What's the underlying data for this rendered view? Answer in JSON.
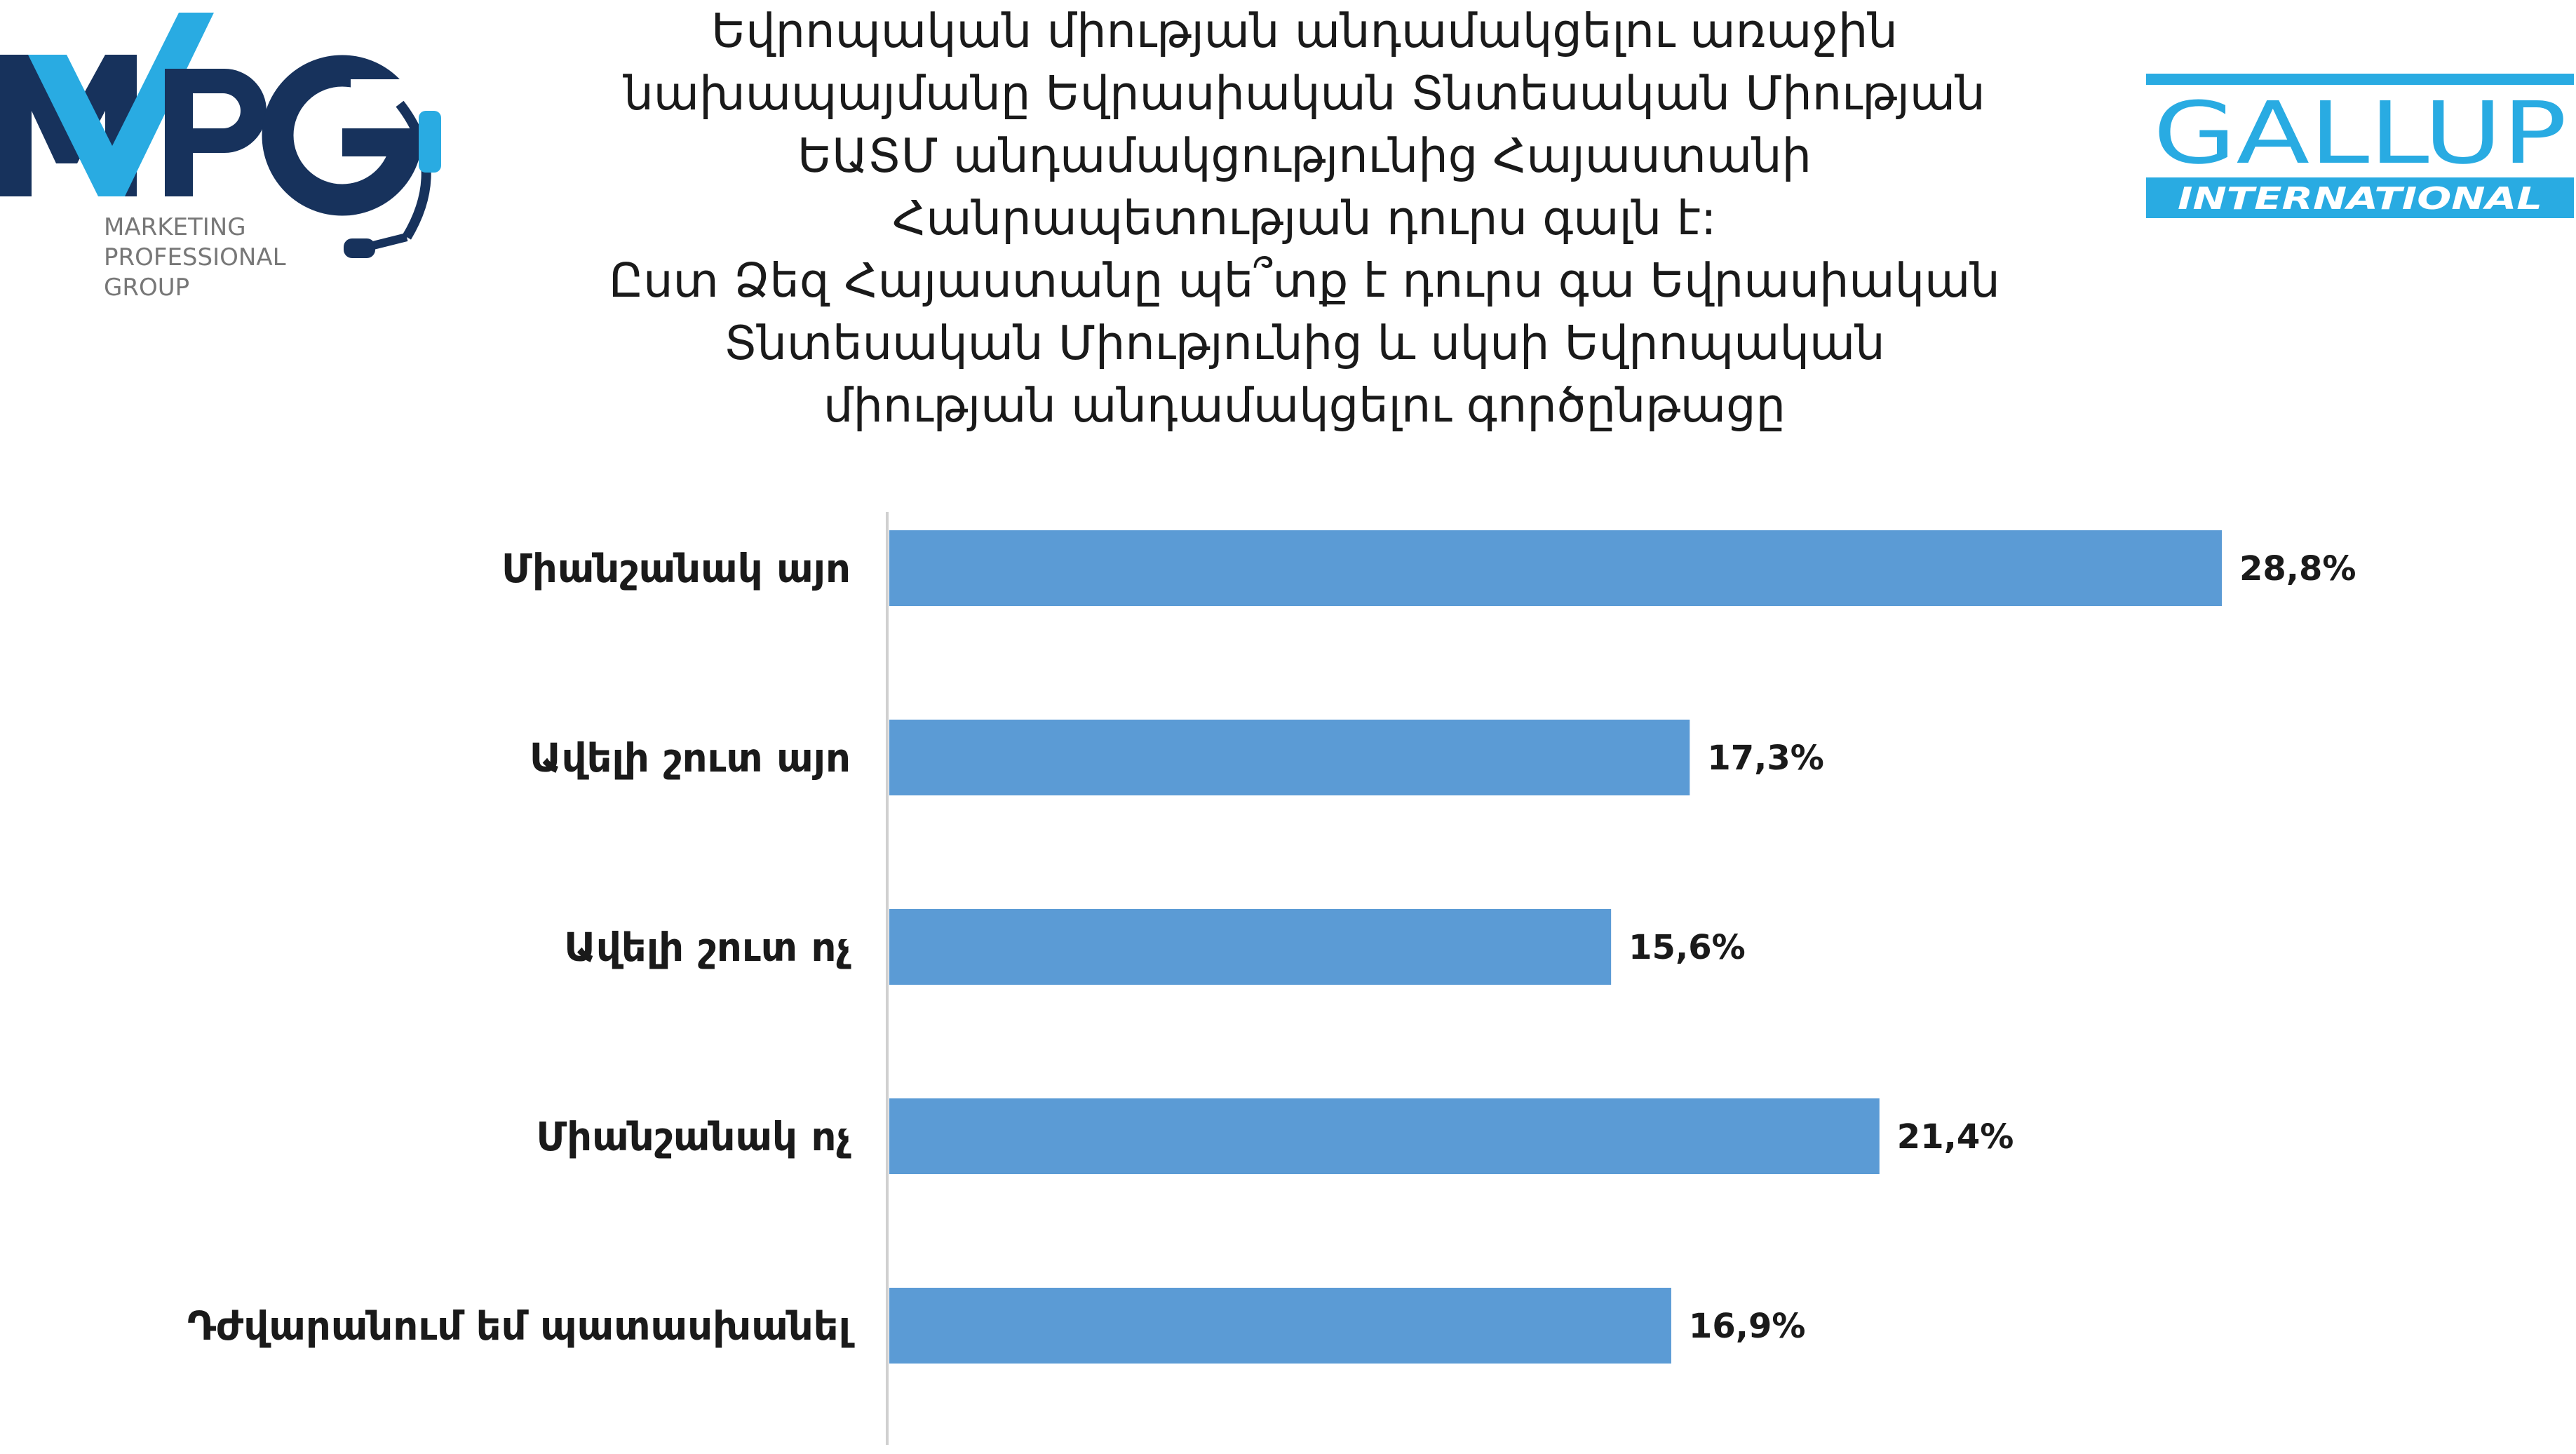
{
  "chart_data": {
    "type": "bar",
    "orientation": "horizontal",
    "title_lines": [
      "Եվրոպական միության անդամակցելու առաջին",
      "նախապայմանը Եվրասիական Տնտեսական Միության",
      "ԵԱՏՄ անդամակցությունից Հայաստանի",
      "Հանրապետության դուրս գալն է:",
      "Ըստ Ձեզ Հայաստանը պե՞տք է դուրս գա Եվրասիական",
      "Տնտեսական Միությունից և սկսի Եվրոպական",
      "միության անդամակցելու գործընթացը"
    ],
    "categories": [
      "Միանշանակ այո",
      "Ավելի շուտ այո",
      "Ավելի շուտ ոչ",
      "Միանշանակ ոչ",
      "Դժվարանում եմ պատասխանել"
    ],
    "values": [
      28.8,
      17.3,
      15.6,
      21.4,
      16.9
    ],
    "value_labels": [
      "28,8%",
      "17,3%",
      "15,6%",
      "21,4%",
      "16,9%"
    ],
    "unit": "%",
    "xlim": [
      0,
      32
    ],
    "grid": false,
    "legend": "none",
    "bar_color": "#5b9bd5"
  },
  "logos": {
    "mpg": {
      "text": "MPG",
      "tagline_lines": [
        "MARKETING",
        "PROFESSIONAL",
        "GROUP"
      ],
      "icon": "headset-icon",
      "primary_color": "#29abe2",
      "dark_color": "#17325c"
    },
    "gallup": {
      "text": "GALLUP",
      "subtext": "INTERNATIONAL",
      "color": "#29abe2"
    }
  }
}
